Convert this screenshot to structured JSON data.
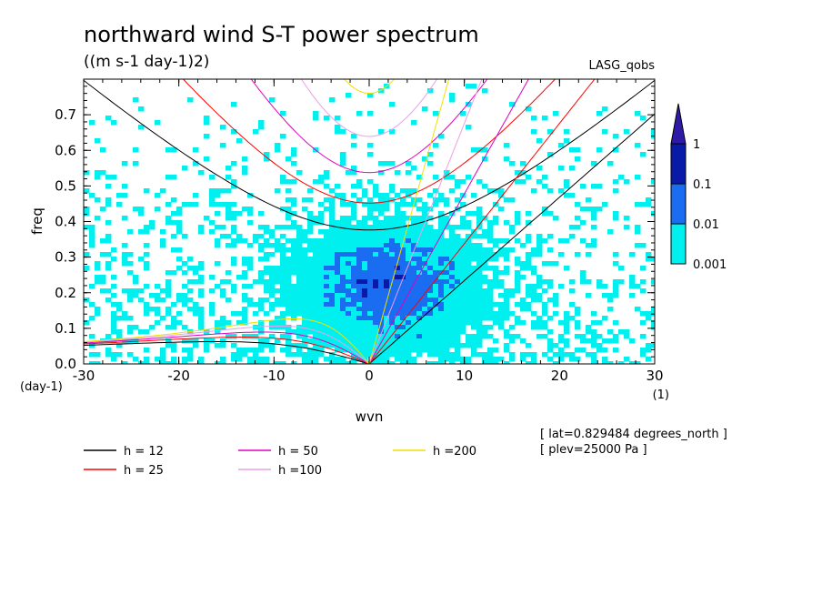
{
  "chart_data": {
    "type": "heatmap",
    "title": "northward wind S-T power spectrum",
    "subtitle": "((m s-1 day-1)2)",
    "model_label": "LASG_qobs",
    "xlabel": "wvn",
    "ylabel": "freq",
    "x_unit": "(1)",
    "y_unit": "(day-1)",
    "xlim": [
      -30,
      30
    ],
    "ylim": [
      0,
      0.8
    ],
    "xticks": [
      "-30",
      "-20",
      "-10",
      "0",
      "10",
      "20",
      "30"
    ],
    "yticks": [
      "0.0",
      "0.1",
      "0.2",
      "0.3",
      "0.4",
      "0.5",
      "0.6",
      "0.7"
    ],
    "xtick_values": [
      -30,
      -20,
      -10,
      0,
      10,
      20,
      30
    ],
    "ytick_values": [
      0,
      0.1,
      0.2,
      0.3,
      0.4,
      0.5,
      0.6,
      0.7
    ],
    "colorbar": {
      "labels": [
        "1",
        "0.1",
        "0.01",
        "0.001"
      ],
      "levels": [
        1,
        0.1,
        0.01,
        0.001
      ],
      "colors": [
        "#2f1aa8",
        "#0a1aa8",
        "#1a6cf0",
        "#00f0f0"
      ]
    },
    "field_colors": [
      "#00f0f0",
      "#1a6cf0",
      "#0a1aa8"
    ],
    "dispersion_curves": [
      {
        "name": "h = 12",
        "depth": 12,
        "color": "#000000"
      },
      {
        "name": "h = 25",
        "depth": 25,
        "color": "#ff0000"
      },
      {
        "name": "h = 50",
        "depth": 50,
        "color": "#e000c0"
      },
      {
        "name": "h =100",
        "depth": 100,
        "color": "#e8a0e8"
      },
      {
        "name": "h =200",
        "depth": 200,
        "color": "#f0e000"
      }
    ],
    "annotations": [
      "[ lat=0.829484 degrees_north ]",
      "[ plev=25000 Pa ]"
    ]
  }
}
